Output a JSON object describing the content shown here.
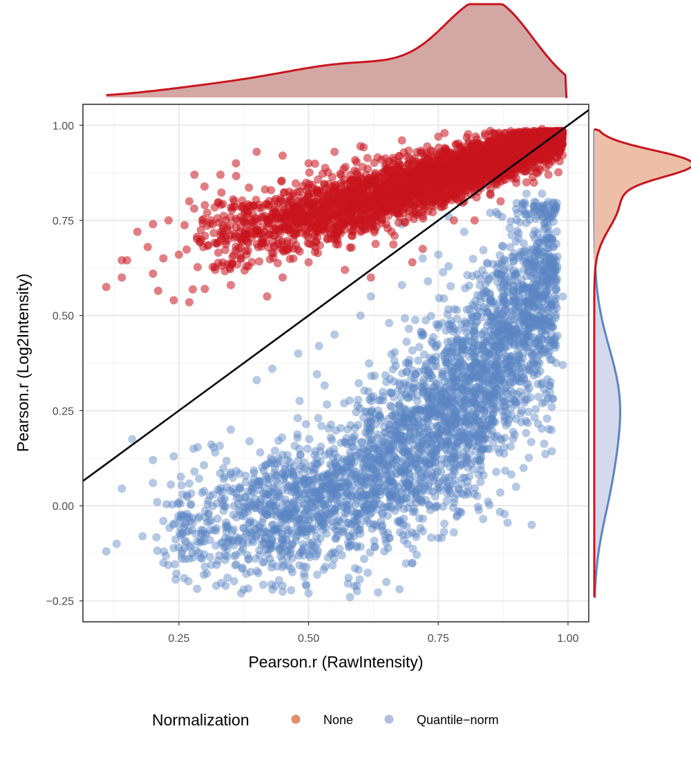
{
  "chart_data": {
    "type": "scatter",
    "xlabel": "Pearson.r (RawIntensity)",
    "ylabel": "Pearson.r (Log2Intensity)",
    "xlim": [
      0.065,
      1.04
    ],
    "ylim": [
      -0.305,
      1.055
    ],
    "x_ticks": [
      "0.25",
      "0.50",
      "0.75",
      "1.00"
    ],
    "x_tick_values": [
      0.25,
      0.5,
      0.75,
      1.0
    ],
    "y_ticks": [
      "−0.25",
      "0.00",
      "0.25",
      "0.50",
      "0.75",
      "1.00"
    ],
    "y_tick_values": [
      -0.25,
      0.0,
      0.25,
      0.5,
      0.75,
      1.0
    ],
    "grid": true,
    "legend": {
      "title": "Normalization",
      "position": "bottom",
      "entries": [
        {
          "label": "None",
          "color": "#e08e6d"
        },
        {
          "label": "Quantile−norm",
          "color": "#b3bfe0"
        }
      ]
    },
    "reference_line": {
      "type": "identity",
      "slope": 1,
      "intercept": 0,
      "color": "#000000"
    },
    "series": [
      {
        "name": "None",
        "color": "#c8141e",
        "points": [
          [
            0.11,
            0.575
          ],
          [
            0.14,
            0.645
          ],
          [
            0.14,
            0.6
          ],
          [
            0.15,
            0.645
          ],
          [
            0.17,
            0.72
          ],
          [
            0.19,
            0.68
          ],
          [
            0.2,
            0.74
          ],
          [
            0.2,
            0.61
          ],
          [
            0.21,
            0.565
          ],
          [
            0.22,
            0.65
          ],
          [
            0.23,
            0.75
          ],
          [
            0.24,
            0.54
          ],
          [
            0.25,
            0.66
          ],
          [
            0.27,
            0.535
          ],
          [
            0.27,
            0.8
          ],
          [
            0.28,
            0.87
          ],
          [
            0.3,
            0.57
          ],
          [
            0.32,
            0.62
          ],
          [
            0.35,
            0.58
          ],
          [
            0.38,
            0.63
          ],
          [
            0.42,
            0.55
          ],
          [
            0.45,
            0.6
          ],
          [
            0.5,
            0.64
          ],
          [
            0.57,
            0.62
          ],
          [
            0.62,
            0.6
          ],
          [
            0.7,
            0.64
          ],
          [
            0.72,
            0.675
          ],
          [
            0.66,
            0.72
          ],
          [
            0.3,
            0.79
          ],
          [
            0.33,
            0.87
          ],
          [
            0.36,
            0.9
          ],
          [
            0.4,
            0.93
          ],
          [
            0.45,
            0.92
          ],
          [
            0.5,
            0.9
          ],
          [
            0.55,
            0.93
          ],
          [
            0.6,
            0.945
          ],
          [
            0.68,
            0.96
          ],
          [
            0.75,
            0.97
          ],
          [
            0.85,
            0.985
          ],
          [
            0.95,
            0.99
          ],
          [
            0.99,
            0.985
          ],
          [
            0.55,
            0.7
          ],
          [
            0.6,
            0.72
          ],
          [
            0.65,
            0.74
          ],
          [
            0.7,
            0.77
          ],
          [
            0.75,
            0.8
          ],
          [
            0.8,
            0.8
          ],
          [
            0.85,
            0.82
          ],
          [
            0.9,
            0.86
          ],
          [
            0.95,
            0.91
          ],
          [
            0.78,
            0.75
          ],
          [
            0.82,
            0.75
          ],
          [
            0.87,
            0.8
          ],
          [
            0.92,
            0.85
          ]
        ]
      },
      {
        "name": "Quantile−norm",
        "color": "#5b84c4",
        "points": [
          [
            0.11,
            -0.12
          ],
          [
            0.13,
            -0.1
          ],
          [
            0.14,
            0.045
          ],
          [
            0.16,
            0.175
          ],
          [
            0.18,
            -0.08
          ],
          [
            0.2,
            0.12
          ],
          [
            0.2,
            0.06
          ],
          [
            0.22,
            -0.04
          ],
          [
            0.22,
            -0.15
          ],
          [
            0.24,
            0.13
          ],
          [
            0.25,
            0.01
          ],
          [
            0.26,
            -0.19
          ],
          [
            0.28,
            0.09
          ],
          [
            0.3,
            -0.16
          ],
          [
            0.32,
            0.14
          ],
          [
            0.34,
            -0.21
          ],
          [
            0.35,
            0.2
          ],
          [
            0.37,
            -0.23
          ],
          [
            0.4,
            0.33
          ],
          [
            0.43,
            0.36
          ],
          [
            0.45,
            -0.21
          ],
          [
            0.48,
            0.4
          ],
          [
            0.5,
            -0.23
          ],
          [
            0.52,
            0.42
          ],
          [
            0.55,
            0.45
          ],
          [
            0.58,
            -0.24
          ],
          [
            0.6,
            0.5
          ],
          [
            0.62,
            0.55
          ],
          [
            0.65,
            -0.2
          ],
          [
            0.68,
            0.58
          ],
          [
            0.7,
            -0.15
          ],
          [
            0.72,
            0.65
          ],
          [
            0.75,
            0.66
          ],
          [
            0.78,
            -0.07
          ],
          [
            0.8,
            0.72
          ],
          [
            0.82,
            0.4
          ],
          [
            0.85,
            0.77
          ],
          [
            0.88,
            0.3
          ],
          [
            0.9,
            0.78
          ],
          [
            0.92,
            0.82
          ],
          [
            0.95,
            0.82
          ],
          [
            0.97,
            0.7
          ],
          [
            0.99,
            0.55
          ],
          [
            0.99,
            0.37
          ],
          [
            0.93,
            -0.05
          ],
          [
            0.9,
            0.05
          ],
          [
            0.77,
            0.76
          ],
          [
            0.73,
            0.59
          ],
          [
            0.68,
            0.74
          ]
        ]
      }
    ],
    "marginal_density_x": {
      "series": "None",
      "peak_at": 0.85,
      "color": "#c8141e",
      "fill": "#d3a7a4"
    },
    "marginal_density_y": [
      {
        "series": "None",
        "peak_at": 0.9,
        "color": "#c8141e",
        "fill": "#edbfa9"
      },
      {
        "series": "Quantile−norm",
        "peak_at": 0.28,
        "color": "#5b84c4",
        "fill": "#d4d9ed"
      }
    ]
  }
}
